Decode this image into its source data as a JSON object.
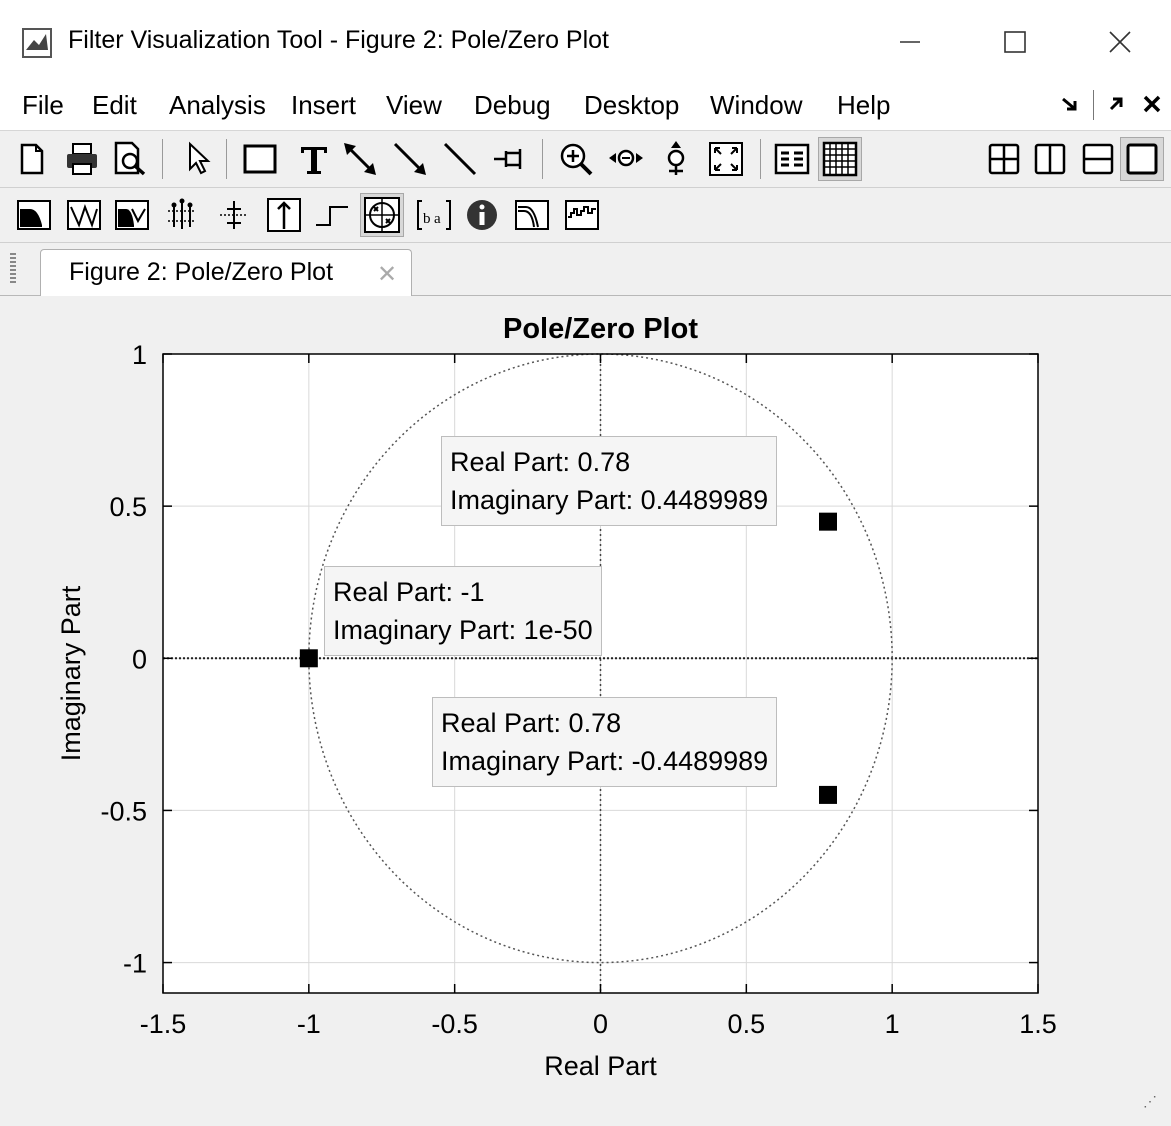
{
  "window": {
    "title": "Filter Visualization Tool - Figure 2: Pole/Zero Plot",
    "icon": "matlab-logo-icon",
    "buttons": [
      "minimize-icon",
      "maximize-icon",
      "close-icon"
    ]
  },
  "menubar": {
    "items": [
      "File",
      "Edit",
      "Analysis",
      "Insert",
      "View",
      "Debug",
      "Desktop",
      "Window",
      "Help"
    ],
    "right_icons": [
      "dock-icon",
      "undock-icon",
      "close-icon"
    ]
  },
  "toolbar1": {
    "icons": [
      "new-figure-icon",
      "print-icon",
      "print-preview-icon",
      "pointer-icon",
      "rectangle-icon",
      "text-icon",
      "arrow-icon",
      "arrow-icon",
      "line-icon",
      "pin-icon",
      "zoom-in-icon",
      "zoom-out-icon",
      "pan-icon",
      "full-view-icon",
      "legend-icon",
      "grid-icon"
    ],
    "layout_icons": [
      "tile-icon",
      "left-right-icon",
      "top-bottom-icon",
      "single-icon"
    ]
  },
  "toolbar2": {
    "icons": [
      "magnitude-response-icon",
      "phase-response-icon",
      "magnitude-phase-icon",
      "group-delay-icon",
      "phase-delay-icon",
      "impulse-response-icon",
      "step-response-icon",
      "pole-zero-icon",
      "coefficients-icon",
      "info-icon",
      "magnitude-estimate-icon",
      "round-off-noise-icon"
    ]
  },
  "tab": {
    "label": "Figure 2: Pole/Zero Plot",
    "close": "close-icon"
  },
  "chart_data": {
    "type": "scatter",
    "title": "Pole/Zero Plot",
    "xlabel": "Real Part",
    "ylabel": "Imaginary Part",
    "xlim": [
      -1.5,
      1.5
    ],
    "ylim": [
      -1.1,
      1.0
    ],
    "xticks": [
      "-1.5",
      "-1",
      "-0.5",
      "0",
      "0.5",
      "1",
      "1.5"
    ],
    "yticks": [
      "-1",
      "-0.5",
      "0",
      "0.5",
      "1"
    ],
    "grid": true,
    "unit_circle": true,
    "marker": "square",
    "points": [
      {
        "x": -1,
        "y": 0
      },
      {
        "x": 0.78,
        "y": 0.4489989
      },
      {
        "x": 0.78,
        "y": -0.4489989
      }
    ],
    "datatips": [
      {
        "line1": "Real Part: 0.78",
        "line2": "Imaginary Part: 0.4489989"
      },
      {
        "line1": "Real Part: -1",
        "line2": "Imaginary Part: 1e-50"
      },
      {
        "line1": "Real Part: 0.78",
        "line2": "Imaginary Part: -0.4489989"
      }
    ]
  }
}
